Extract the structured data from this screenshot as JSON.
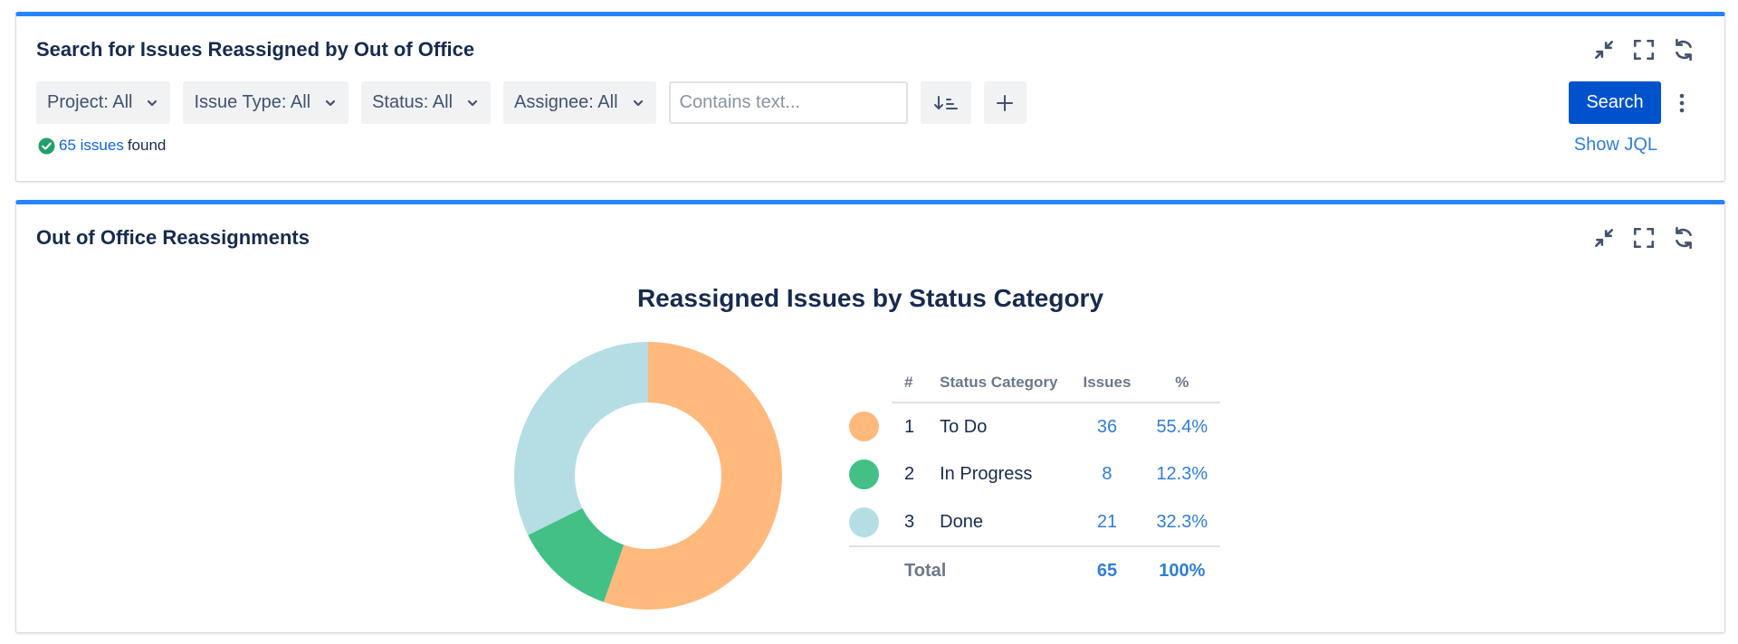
{
  "search_gadget": {
    "title": "Search for Issues Reassigned by Out of Office",
    "filters": {
      "project": "Project: All",
      "issue_type": "Issue Type: All",
      "status": "Status: All",
      "assignee": "Assignee: All"
    },
    "text_placeholder": "Contains text...",
    "search_label": "Search",
    "found_count": "65 issues",
    "found_suffix": "found",
    "show_jql": "Show JQL"
  },
  "report_gadget": {
    "title": "Out of Office Reassignments"
  },
  "chart_data": {
    "type": "pie",
    "variant": "donut",
    "title": "Reassigned Issues by Status Category",
    "categories": [
      "To Do",
      "In Progress",
      "Done"
    ],
    "values": [
      36,
      8,
      21
    ],
    "colors": [
      "#ffb97d",
      "#42c086",
      "#b5dde4"
    ],
    "table": {
      "headers": [
        "#",
        "Status Category",
        "Issues",
        "%"
      ],
      "rows": [
        {
          "n": "1",
          "category": "To Do",
          "issues": "36",
          "pct": "55.4%"
        },
        {
          "n": "2",
          "category": "In Progress",
          "issues": "8",
          "pct": "12.3%"
        },
        {
          "n": "3",
          "category": "Done",
          "issues": "21",
          "pct": "32.3%"
        }
      ],
      "total_label": "Total",
      "total_issues": "65",
      "total_pct": "100%"
    }
  }
}
